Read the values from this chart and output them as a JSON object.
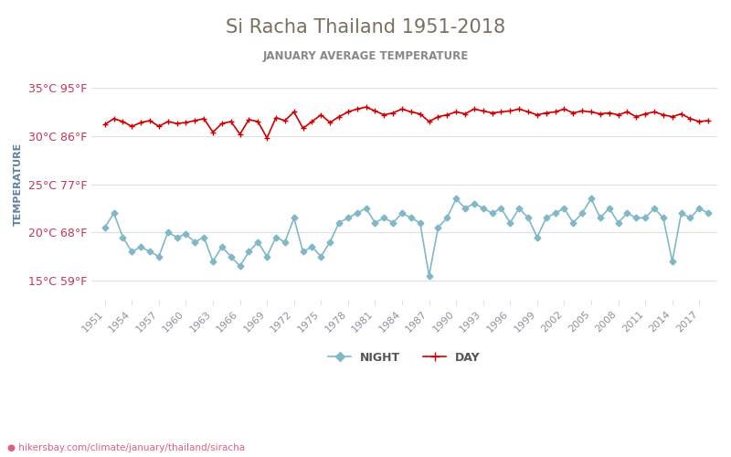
{
  "title": "Si Racha Thailand 1951-2018",
  "subtitle": "JANUARY AVERAGE TEMPERATURE",
  "ylabel": "TEMPERATURE",
  "url": "hikersbay.com/climate/january/thailand/siracha",
  "title_color": "#7a7060",
  "subtitle_color": "#888888",
  "ylabel_color": "#6080a0",
  "tick_color": "#9090a0",
  "background_color": "#ffffff",
  "grid_color": "#e0e0e0",
  "day_color": "#cc0000",
  "night_color": "#80b8c8",
  "ytick_label_color": "#cc3355",
  "ylim_c": [
    13,
    37
  ],
  "years": [
    1951,
    1952,
    1953,
    1954,
    1955,
    1956,
    1957,
    1958,
    1959,
    1960,
    1961,
    1962,
    1963,
    1964,
    1965,
    1966,
    1967,
    1968,
    1969,
    1970,
    1971,
    1972,
    1973,
    1974,
    1975,
    1976,
    1977,
    1978,
    1979,
    1980,
    1981,
    1982,
    1983,
    1984,
    1985,
    1986,
    1987,
    1988,
    1989,
    1990,
    1991,
    1992,
    1993,
    1994,
    1995,
    1996,
    1997,
    1998,
    1999,
    2000,
    2001,
    2002,
    2003,
    2004,
    2005,
    2006,
    2007,
    2008,
    2009,
    2010,
    2011,
    2012,
    2013,
    2014,
    2015,
    2016,
    2017,
    2018
  ],
  "day_temps": [
    31.2,
    31.8,
    31.5,
    31.0,
    31.4,
    31.6,
    31.0,
    31.5,
    31.3,
    31.4,
    31.6,
    31.8,
    30.4,
    31.3,
    31.5,
    30.2,
    31.7,
    31.5,
    29.8,
    31.9,
    31.6,
    32.5,
    30.8,
    31.5,
    32.2,
    31.4,
    32.0,
    32.5,
    32.8,
    33.0,
    32.6,
    32.2,
    32.4,
    32.8,
    32.5,
    32.3,
    31.5,
    32.0,
    32.2,
    32.5,
    32.3,
    32.8,
    32.6,
    32.4,
    32.5,
    32.6,
    32.8,
    32.5,
    32.2,
    32.4,
    32.5,
    32.8,
    32.4,
    32.6,
    32.5,
    32.3,
    32.4,
    32.2,
    32.5,
    32.0,
    32.3,
    32.5,
    32.2,
    32.0,
    32.3,
    31.8,
    31.5,
    31.6
  ],
  "night_temps": [
    20.5,
    22.0,
    19.5,
    18.0,
    18.5,
    18.0,
    17.5,
    20.0,
    19.5,
    19.8,
    19.0,
    19.5,
    17.0,
    18.5,
    17.5,
    16.5,
    18.0,
    19.0,
    17.5,
    19.5,
    19.0,
    21.5,
    18.0,
    18.5,
    17.5,
    19.0,
    21.0,
    21.5,
    22.0,
    22.5,
    21.0,
    21.5,
    21.0,
    22.0,
    21.5,
    21.0,
    15.5,
    20.5,
    21.5,
    23.5,
    22.5,
    23.0,
    22.5,
    22.0,
    22.5,
    21.0,
    22.5,
    21.5,
    19.5,
    21.5,
    22.0,
    22.5,
    21.0,
    22.0,
    23.5,
    21.5,
    22.5,
    21.0,
    22.0,
    21.5,
    21.5,
    22.5,
    21.5,
    17.0,
    22.0,
    21.5,
    22.5,
    22.0
  ],
  "yticks_c": [
    15,
    20,
    25,
    30,
    35
  ],
  "yticks_f": [
    59,
    68,
    77,
    86,
    95
  ],
  "xticks": [
    1951,
    1954,
    1957,
    1960,
    1963,
    1966,
    1969,
    1972,
    1975,
    1978,
    1981,
    1984,
    1987,
    1990,
    1993,
    1996,
    1999,
    2002,
    2005,
    2008,
    2011,
    2014,
    2017
  ]
}
